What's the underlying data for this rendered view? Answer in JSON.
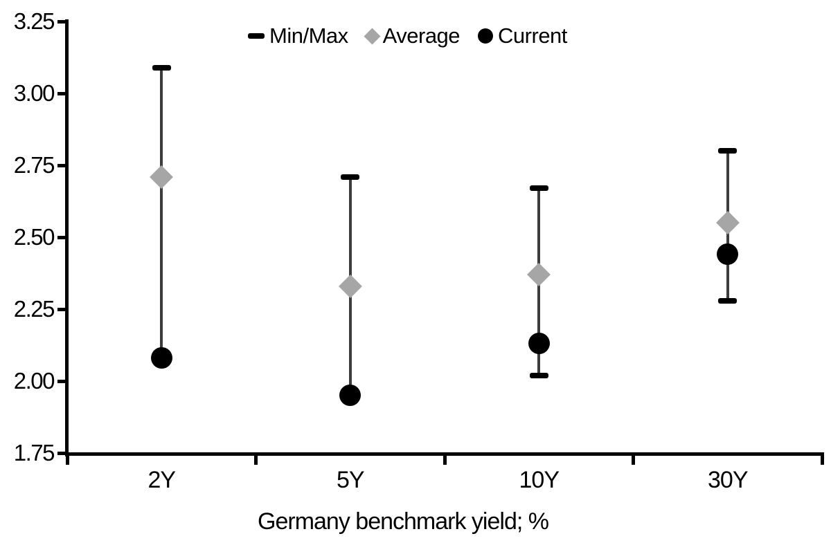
{
  "chart_data": {
    "type": "scatter",
    "subtype": "min-max-range",
    "title": "",
    "xlabel": "Germany benchmark yield; %",
    "ylabel": "",
    "categories": [
      "2Y",
      "5Y",
      "10Y",
      "30Y"
    ],
    "series": [
      {
        "name": "Min/Max",
        "role": "range",
        "min": [
          2.08,
          1.95,
          2.02,
          2.28
        ],
        "max": [
          3.09,
          2.71,
          2.67,
          2.8
        ]
      },
      {
        "name": "Average",
        "role": "average",
        "marker": "diamond",
        "values": [
          2.71,
          2.33,
          2.37,
          2.55
        ]
      },
      {
        "name": "Current",
        "role": "current",
        "marker": "circle",
        "values": [
          2.08,
          1.95,
          2.13,
          2.44
        ]
      }
    ],
    "ylim": [
      1.75,
      3.25
    ],
    "yticks": [
      3.25,
      3.0,
      2.75,
      2.5,
      2.25,
      2.0,
      1.75
    ],
    "ytick_labels": [
      "3.25",
      "3.00",
      "2.75",
      "2.50",
      "2.25",
      "2.00",
      "1.75"
    ],
    "grid": false,
    "legend_position": "top-center",
    "legend": [
      {
        "marker": "dash",
        "label": "Min/Max"
      },
      {
        "marker": "diamond",
        "label": "Average"
      },
      {
        "marker": "circle",
        "label": "Current"
      }
    ],
    "colors": {
      "axis": "#000000",
      "text": "#000000",
      "whisker": "#3d3d3d",
      "minmax_marker": "#000000",
      "average_marker": "#a6a6a6",
      "current_marker": "#000000",
      "background": "#ffffff"
    }
  }
}
